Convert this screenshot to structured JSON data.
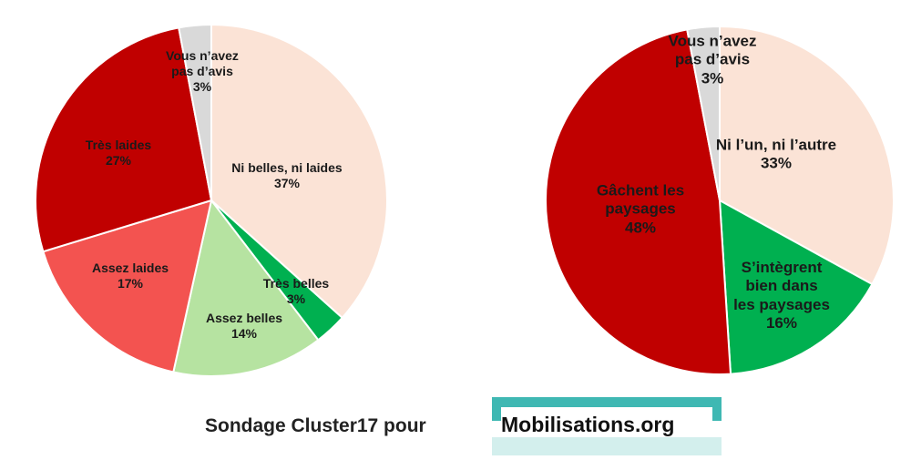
{
  "chart_data": [
    {
      "type": "pie",
      "categories": [
        "Ni belles, ni laides",
        "Très belles",
        "Assez belles",
        "Assez laides",
        "Très laides",
        "Vous n’avez\npas d’avis"
      ],
      "values": [
        37,
        3,
        14,
        17,
        27,
        3
      ],
      "value_labels": [
        "37%",
        "3%",
        "14%",
        "17%",
        "27%",
        "3%"
      ],
      "colors": [
        "#fbe3d6",
        "#00b050",
        "#b6e3a1",
        "#f35350",
        "#c00000",
        "#d9d9d9"
      ]
    },
    {
      "type": "pie",
      "categories": [
        "Ni l’un, ni l’autre",
        "S’intègrent\nbien dans\nles paysages",
        "Gâchent les\npaysages",
        "Vous n’avez\npas d’avis"
      ],
      "values": [
        33,
        16,
        48,
        3
      ],
      "value_labels": [
        "33%",
        "16%",
        "48%",
        "3%"
      ],
      "colors": [
        "#fbe3d6",
        "#00b050",
        "#c00000",
        "#d9d9d9"
      ]
    }
  ],
  "footer": {
    "text": "Sondage Cluster17 pour",
    "logo": "Mobilisations.org"
  }
}
